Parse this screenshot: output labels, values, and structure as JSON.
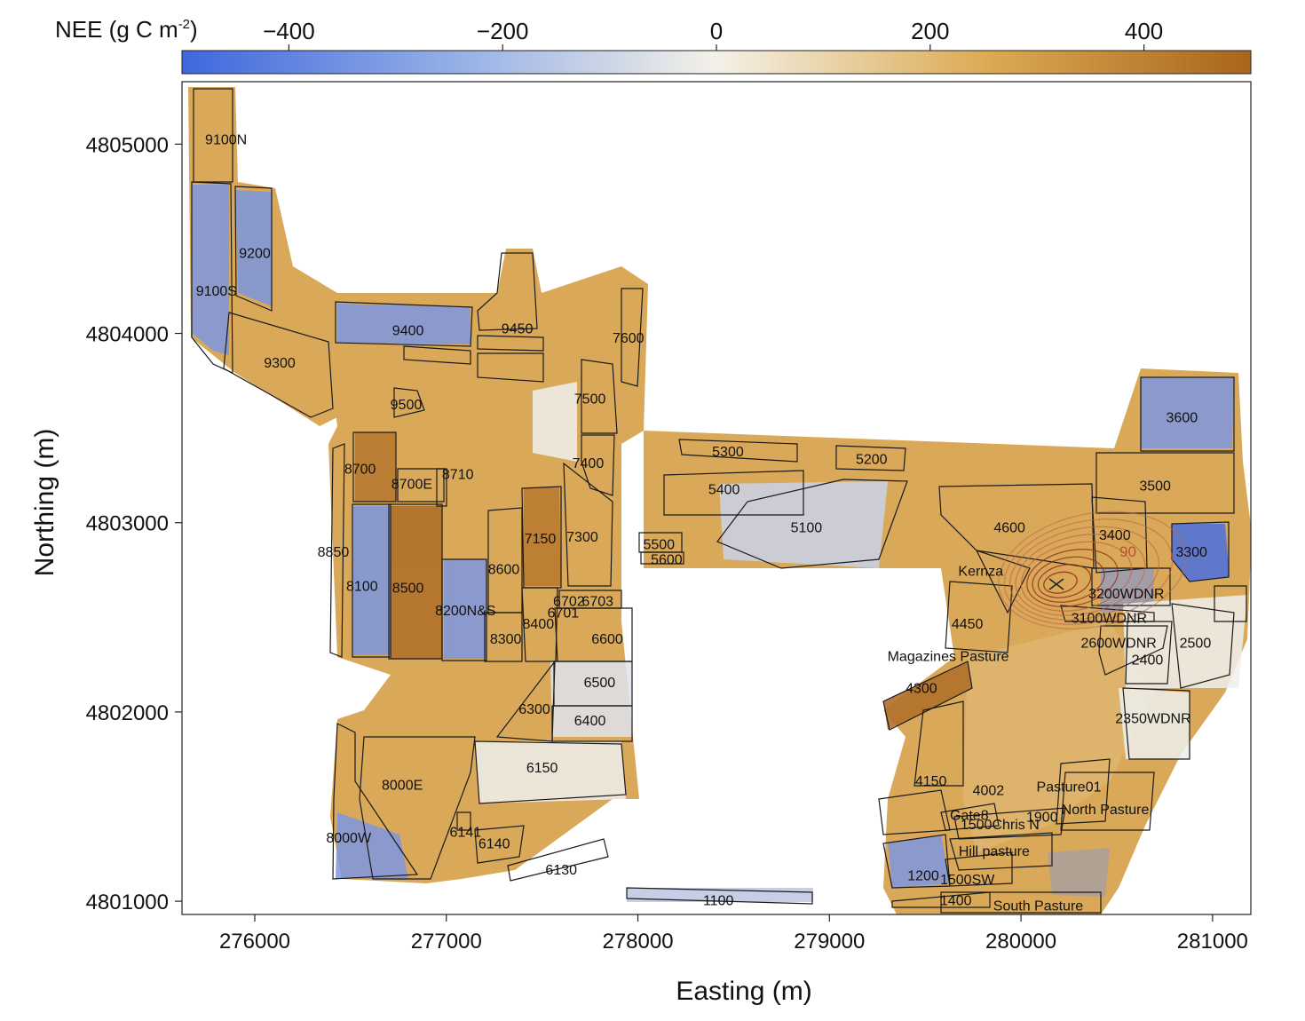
{
  "colorbar": {
    "title": "NEE (g C m",
    "title_sup": "-2",
    "title_close": ")",
    "ticks": [
      "−400",
      "−200",
      "0",
      "200",
      "400"
    ],
    "tick_values": [
      -400,
      -200,
      0,
      200,
      400
    ],
    "range": [
      -500,
      500
    ],
    "colors": {
      "negative": "#3f67dd",
      "mid": "#f4f1e8",
      "positive": "#a9651c"
    }
  },
  "axes": {
    "xlabel": "Easting (m)",
    "ylabel": "Northing (m)",
    "xticks": [
      "276000",
      "277000",
      "278000",
      "279000",
      "280000",
      "281000"
    ],
    "yticks": [
      "4801000",
      "4802000",
      "4803000",
      "4804000",
      "4805000"
    ],
    "xlim": [
      275620,
      281200
    ],
    "ylim": [
      4800930,
      4805330
    ]
  },
  "footprint_contour_label": "90",
  "footprint_color": "#9b2f1f",
  "fields": [
    {
      "label": "9100N",
      "x": 275850,
      "y": 4805000,
      "nee": 120
    },
    {
      "label": "9200",
      "x": 276000,
      "y": 4804400,
      "nee": -200
    },
    {
      "label": "9100S",
      "x": 275800,
      "y": 4804200,
      "nee": -220
    },
    {
      "label": "9400",
      "x": 276800,
      "y": 4803990,
      "nee": -260
    },
    {
      "label": "9450",
      "x": 277370,
      "y": 4804000,
      "nee": 80
    },
    {
      "label": "7600",
      "x": 277950,
      "y": 4803950,
      "nee": 250
    },
    {
      "label": "9300",
      "x": 276130,
      "y": 4803820,
      "nee": 180
    },
    {
      "label": "9500",
      "x": 276790,
      "y": 4803600,
      "nee": 280
    },
    {
      "label": "7500",
      "x": 277750,
      "y": 4803630,
      "nee": 40
    },
    {
      "label": "8700",
      "x": 276550,
      "y": 4803260,
      "nee": 260
    },
    {
      "label": "8710",
      "x": 277060,
      "y": 4803230,
      "nee": 120
    },
    {
      "label": "8700E",
      "x": 276820,
      "y": 4803180,
      "nee": 150
    },
    {
      "label": "7400",
      "x": 277740,
      "y": 4803290,
      "nee": 30
    },
    {
      "label": "5300",
      "x": 278470,
      "y": 4803350,
      "nee": 160
    },
    {
      "label": "5200",
      "x": 279220,
      "y": 4803310,
      "nee": 190
    },
    {
      "label": "5400",
      "x": 278450,
      "y": 4803150,
      "nee": 220
    },
    {
      "label": "3600",
      "x": 280840,
      "y": 4803530,
      "nee": -150
    },
    {
      "label": "3500",
      "x": 280700,
      "y": 4803170,
      "nee": 140
    },
    {
      "label": "5100",
      "x": 278880,
      "y": 4802950,
      "nee": -120
    },
    {
      "label": "4600",
      "x": 279940,
      "y": 4802950,
      "nee": 200
    },
    {
      "label": "3400",
      "x": 280490,
      "y": 4802910,
      "nee": 60
    },
    {
      "label": "3300",
      "x": 280890,
      "y": 4802820,
      "nee": -300
    },
    {
      "label": "8850",
      "x": 276410,
      "y": 4802820,
      "nee": -80
    },
    {
      "label": "7150",
      "x": 277490,
      "y": 4802890,
      "nee": 260
    },
    {
      "label": "7300",
      "x": 277710,
      "y": 4802900,
      "nee": 10
    },
    {
      "label": "8600",
      "x": 277300,
      "y": 4802730,
      "nee": 60
    },
    {
      "label": "5500",
      "x": 278110,
      "y": 4802860,
      "nee": 20
    },
    {
      "label": "5600",
      "x": 278150,
      "y": 4802780,
      "nee": 20
    },
    {
      "label": "Kernza",
      "x": 279790,
      "y": 4802720,
      "nee": 220
    },
    {
      "label": "8100",
      "x": 276560,
      "y": 4802640,
      "nee": -200
    },
    {
      "label": "8500",
      "x": 276800,
      "y": 4802630,
      "nee": 300
    },
    {
      "label": "3200WDNR",
      "x": 280550,
      "y": 4802600,
      "nee": -150
    },
    {
      "label": "6702",
      "x": 277640,
      "y": 4802560,
      "nee": 40
    },
    {
      "label": "6703",
      "x": 277790,
      "y": 4802560,
      "nee": 40
    },
    {
      "label": "6701",
      "x": 277610,
      "y": 4802500,
      "nee": 40
    },
    {
      "label": "8200N&S",
      "x": 277100,
      "y": 4802510,
      "nee": -220
    },
    {
      "label": "3100WDNR",
      "x": 280460,
      "y": 4802470,
      "nee": 40
    },
    {
      "label": "4450",
      "x": 279720,
      "y": 4802440,
      "nee": 130
    },
    {
      "label": "8400",
      "x": 277480,
      "y": 4802440,
      "nee": 80
    },
    {
      "label": "8300",
      "x": 277310,
      "y": 4802360,
      "nee": 90
    },
    {
      "label": "6600",
      "x": 277840,
      "y": 4802360,
      "nee": 20
    },
    {
      "label": "2600WDNR",
      "x": 280510,
      "y": 4802340,
      "nee": 40
    },
    {
      "label": "2500",
      "x": 280910,
      "y": 4802340,
      "nee": 20
    },
    {
      "label": "2400",
      "x": 280660,
      "y": 4802250,
      "nee": 20
    },
    {
      "label": "Magazines Pasture",
      "x": 279620,
      "y": 4802270,
      "nee": 150
    },
    {
      "label": "6500",
      "x": 277800,
      "y": 4802130,
      "nee": -20
    },
    {
      "label": "4300",
      "x": 279480,
      "y": 4802100,
      "nee": 340
    },
    {
      "label": "6300",
      "x": 277460,
      "y": 4801990,
      "nee": 60
    },
    {
      "label": "6400",
      "x": 277750,
      "y": 4801930,
      "nee": -40
    },
    {
      "label": "2350WDNR",
      "x": 280690,
      "y": 4801940,
      "nee": 40
    },
    {
      "label": "6150",
      "x": 277500,
      "y": 4801680,
      "nee": 60
    },
    {
      "label": "4150",
      "x": 279530,
      "y": 4801610,
      "nee": -100
    },
    {
      "label": "8000E",
      "x": 276770,
      "y": 4801590,
      "nee": 120
    },
    {
      "label": "4002",
      "x": 279830,
      "y": 4801560,
      "nee": 60
    },
    {
      "label": "Pasture01",
      "x": 280250,
      "y": 4801580,
      "nee": 120
    },
    {
      "label": "North Pasture",
      "x": 280440,
      "y": 4801460,
      "nee": 140
    },
    {
      "label": "Gate8",
      "x": 279730,
      "y": 4801430,
      "nee": 30
    },
    {
      "label": "1900",
      "x": 280110,
      "y": 4801420,
      "nee": 30
    },
    {
      "label": "1500Chris N",
      "x": 279890,
      "y": 4801380,
      "nee": 30
    },
    {
      "label": "6141",
      "x": 277100,
      "y": 4801340,
      "nee": 60
    },
    {
      "label": "6140",
      "x": 277250,
      "y": 4801280,
      "nee": -60
    },
    {
      "label": "8000W",
      "x": 276490,
      "y": 4801310,
      "nee": -160
    },
    {
      "label": "Hill pasture",
      "x": 279860,
      "y": 4801240,
      "nee": 30
    },
    {
      "label": "6130",
      "x": 277600,
      "y": 4801140,
      "nee": -60
    },
    {
      "label": "1200",
      "x": 279490,
      "y": 4801110,
      "nee": -180
    },
    {
      "label": "1500SW",
      "x": 279720,
      "y": 4801090,
      "nee": 30
    },
    {
      "label": "1100",
      "x": 278420,
      "y": 4800980,
      "nee": -80
    },
    {
      "label": "1400",
      "x": 279660,
      "y": 4800980,
      "nee": 40
    },
    {
      "label": "South Pasture",
      "x": 280090,
      "y": 4800950,
      "nee": 60
    }
  ]
}
